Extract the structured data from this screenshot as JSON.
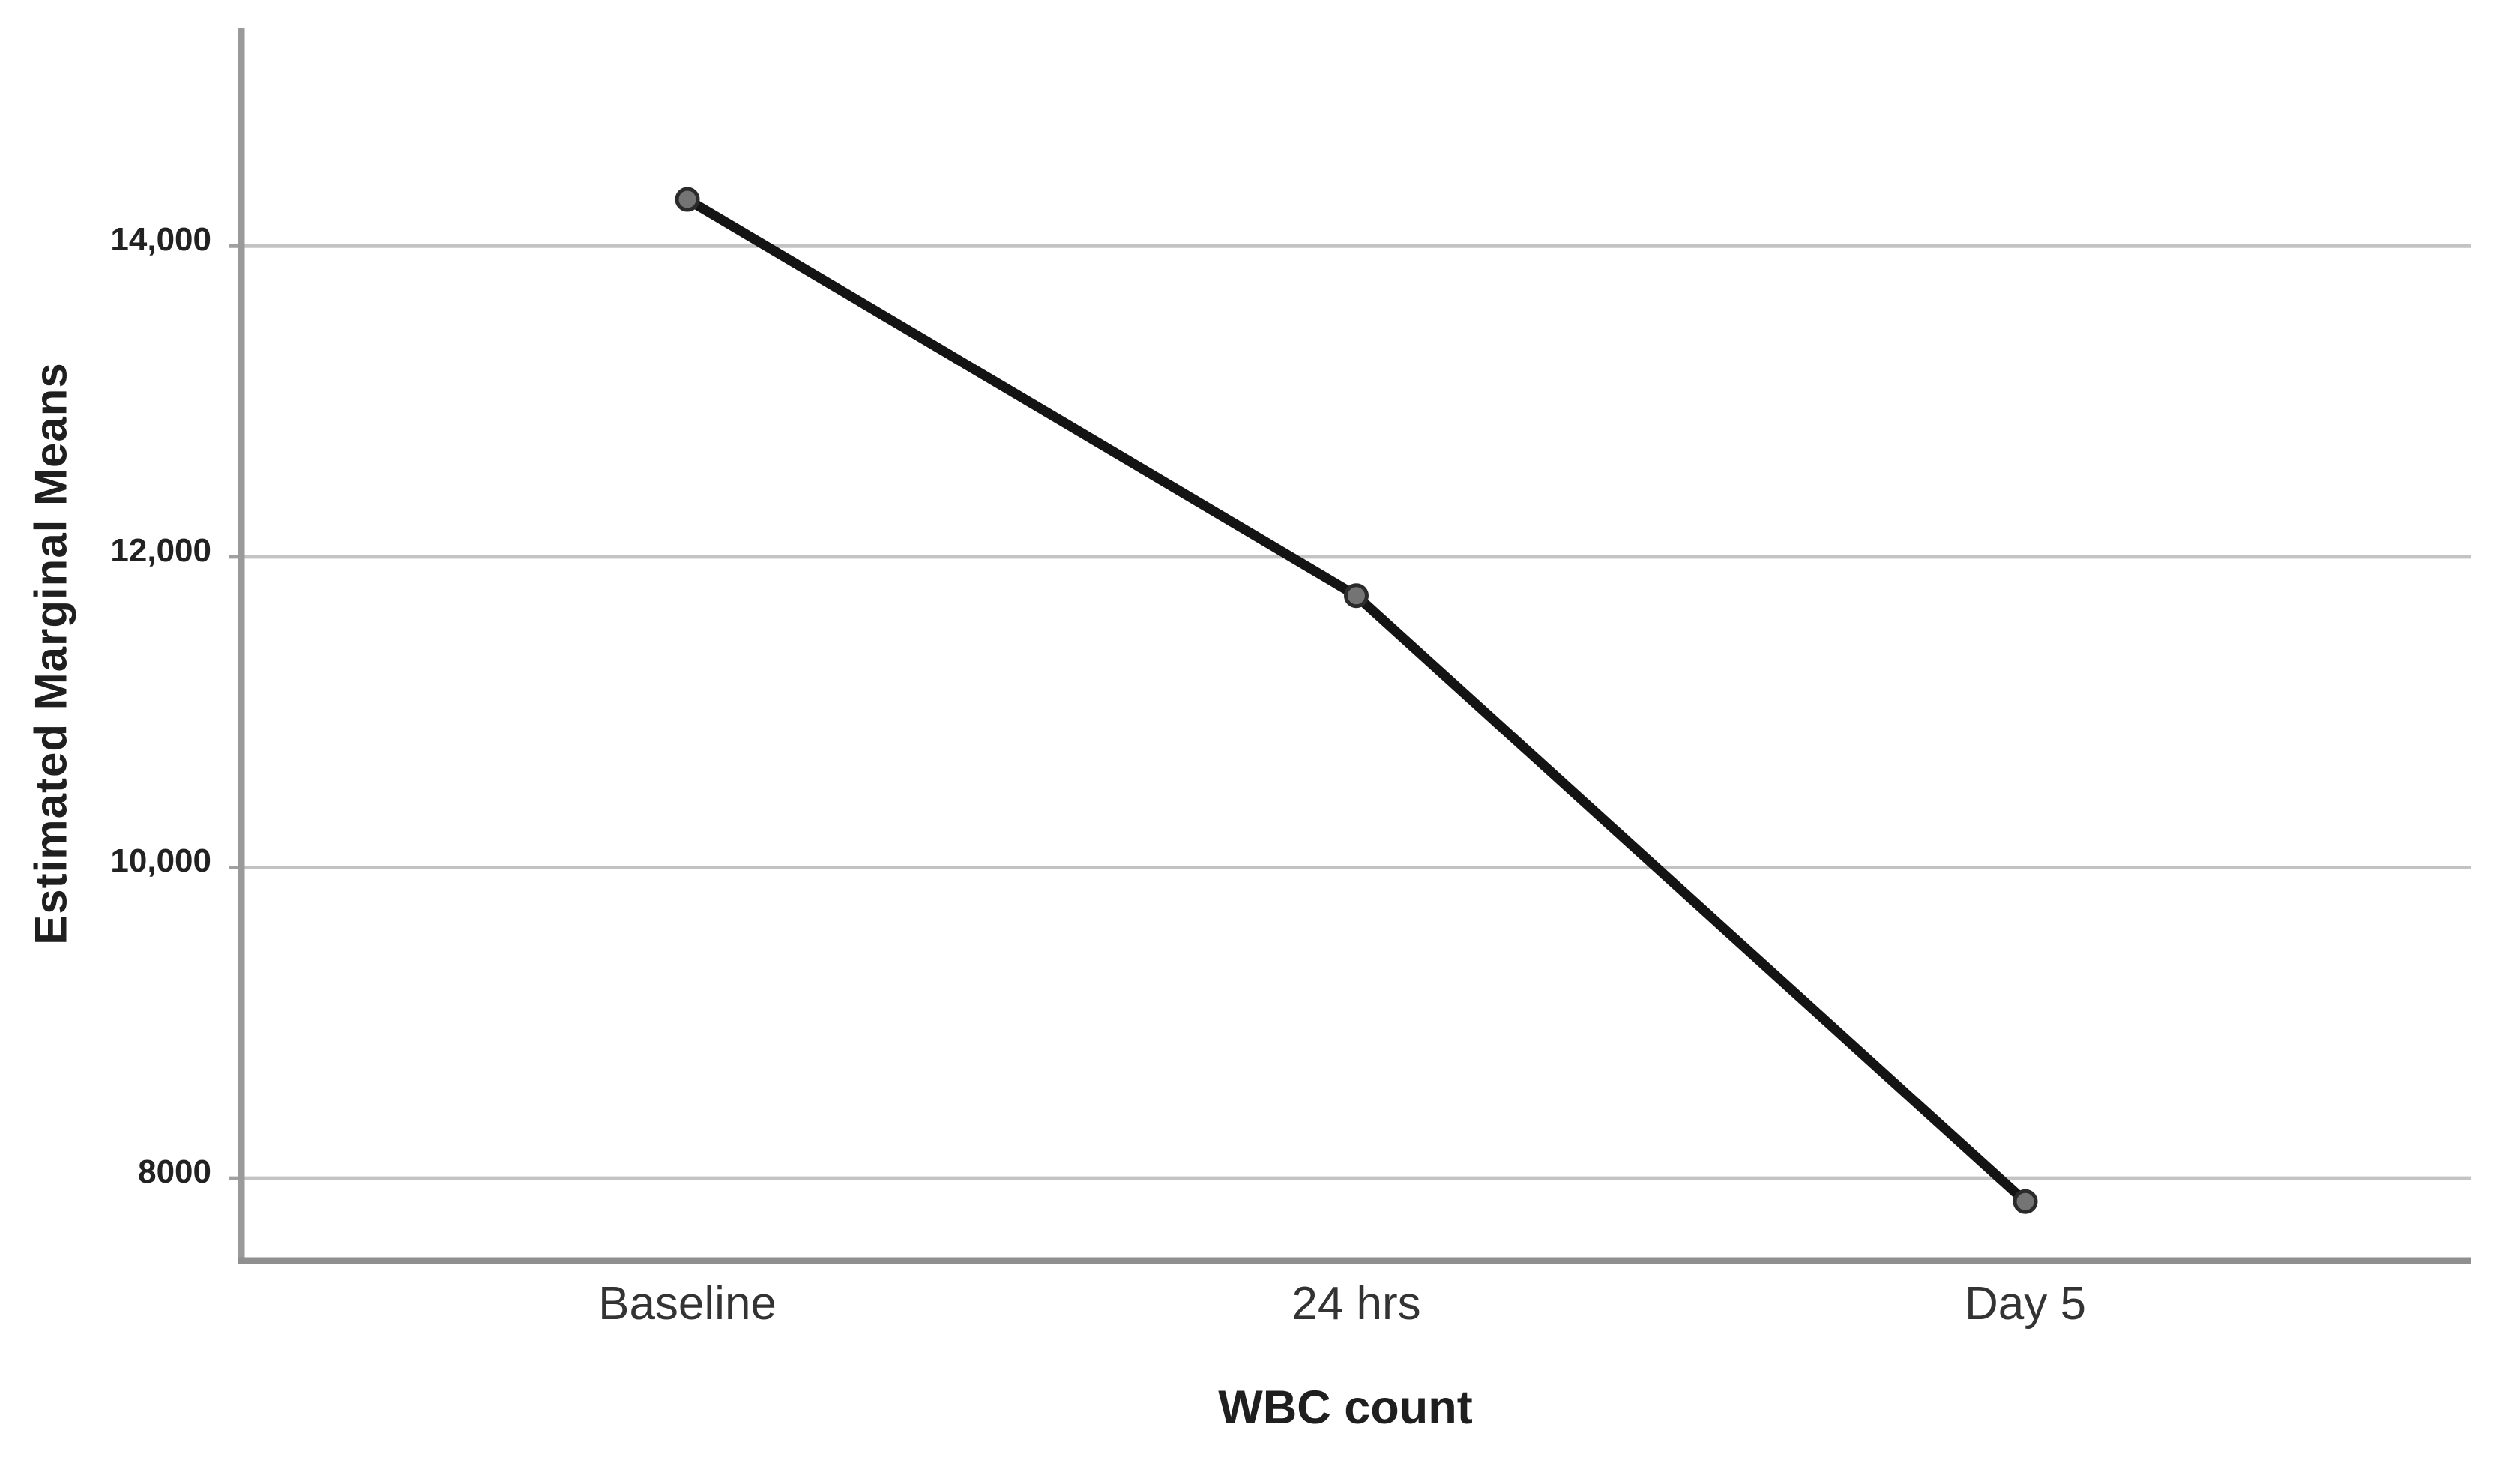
{
  "chart_data": {
    "type": "line",
    "title": "",
    "xlabel": "WBC count",
    "ylabel": "Estimated Marginal Means",
    "categories": [
      "Baseline",
      "24 hrs",
      "Day 5"
    ],
    "series": [
      {
        "values": [
          14300,
          11750,
          7850
        ]
      }
    ],
    "yticks": {
      "labels": [
        "14,000",
        "12,000",
        "10,000",
        "8000"
      ],
      "values": [
        14000,
        12000,
        10000,
        8000
      ]
    },
    "ylim": [
      7470,
      15400
    ],
    "grid": "horizontal-only",
    "legend": "none",
    "colors": {
      "line": "#141414",
      "marker_fill": "#747474",
      "marker_stroke": "#2b2b2b",
      "gridline": "#c3c3c3",
      "axis": "#9a9a9a",
      "bottom_axis": "#8f8f8f",
      "tick": "#a0a0a0",
      "text": "#222222",
      "background": "#ffffff"
    }
  }
}
